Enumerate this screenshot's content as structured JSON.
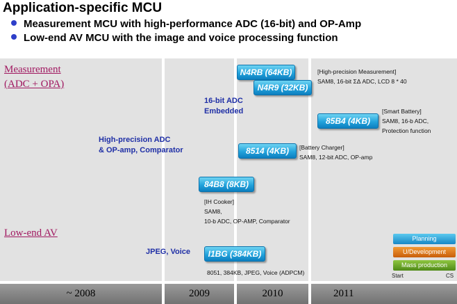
{
  "header": {
    "title": "Application-specific MCU",
    "bullets": [
      "Measurement MCU with high-performance ADC (16-bit) and OP-Amp",
      "Low-end AV MCU with the image and voice processing function"
    ]
  },
  "categories": {
    "measurement": [
      "Measurement",
      "(ADC + OPA)"
    ],
    "low_end_av": "Low-end AV"
  },
  "features": {
    "adc16": [
      "16-bit ADC",
      "Embedded"
    ],
    "high_precision": [
      "High-precision ADC",
      "& OP-amp, Comparator"
    ],
    "jpeg_voice": "JPEG, Voice"
  },
  "products": {
    "n4rb": {
      "label": "N4RB (64KB)"
    },
    "n4r9": {
      "label": "N4R9 (32KB)",
      "notes": [
        "[High-precision Measurement]",
        "SAM8, 16-bit ΣΔ ADC, LCD 8 * 40"
      ]
    },
    "p85b4": {
      "label": "85B4 (4KB)",
      "notes": [
        "[Smart Battery]",
        "SAM8, 16-b ADC,",
        "Protection function"
      ]
    },
    "p8514": {
      "label": "8514 (4KB)",
      "notes": [
        "[Battery Charger]",
        "SAM8, 12-bit ADC, OP-amp"
      ]
    },
    "p84b8": {
      "label": "84B8 (8KB)",
      "notes": [
        "[IH Cooker]",
        "SAM8,",
        "10-b ADC, OP-AMP, Comparator"
      ]
    },
    "i1bg": {
      "label": "I1BG (384KB)",
      "notes": [
        "8051, 384KB, JPEG, Voice (ADPCM)"
      ]
    }
  },
  "legend": {
    "planning": "Planning",
    "development": "U/Development",
    "mass_production": "Mass production",
    "start": "Start",
    "cs": "CS"
  },
  "timeline": {
    "years": [
      "~ 2008",
      "2009",
      "2010",
      "2011"
    ]
  },
  "colors": {
    "badge_blue": "#22a3dc",
    "category_magenta": "#a01860",
    "feature_blue": "#1f2fa6",
    "bullet_blue": "#2e3fc9",
    "timeline_grey": "#e2e2e2"
  }
}
